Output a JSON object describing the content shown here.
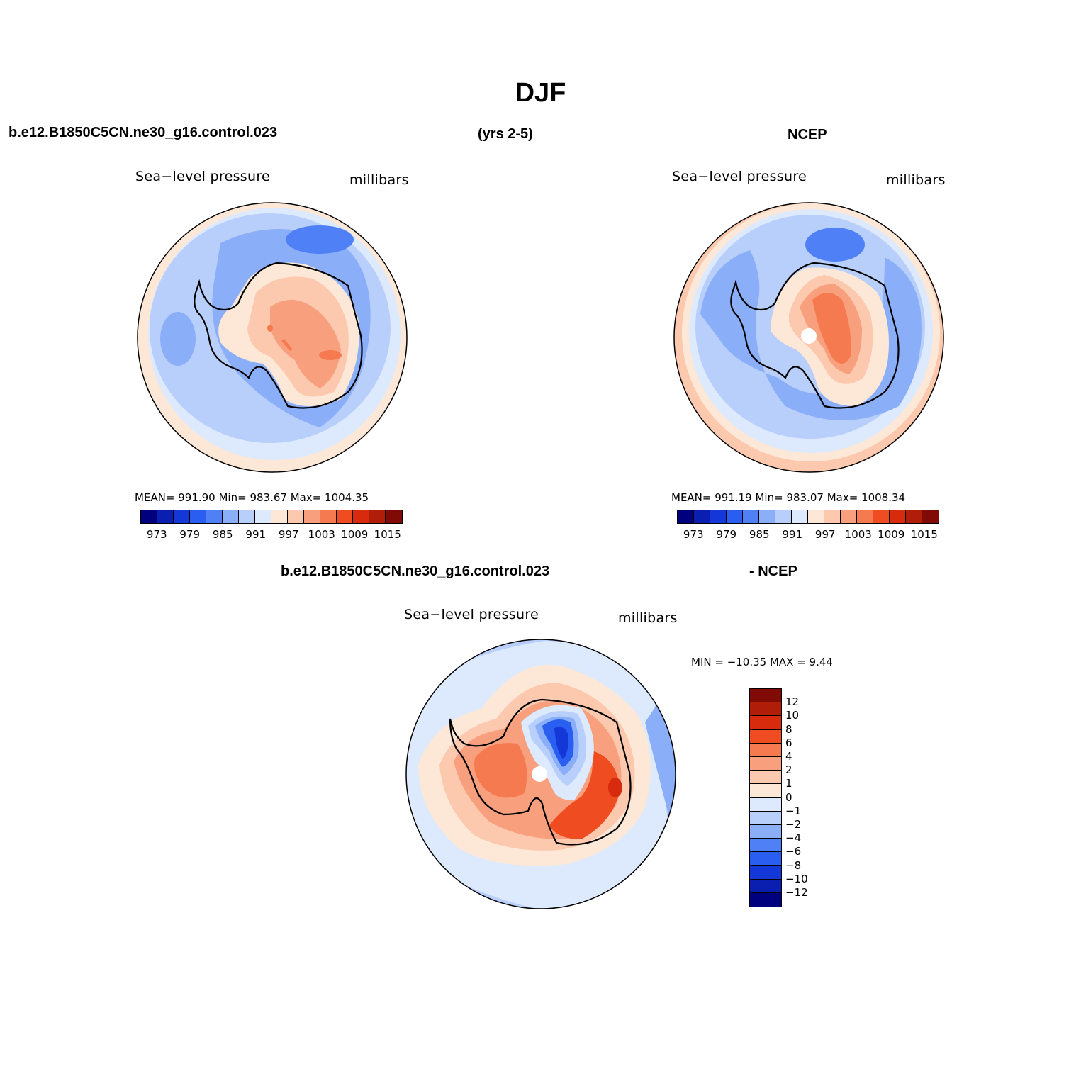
{
  "season_title": "DJF",
  "header": {
    "case_name": "b.e12.B1850C5CN.ne30_g16.control.023",
    "years": "(yrs 2-5)",
    "obs_name": "NCEP"
  },
  "panels": {
    "model": {
      "variable": "Sea−level pressure",
      "units": "millibars",
      "stats": "MEAN=  991.90   Min=  983.67   Max=  1004.35"
    },
    "obs": {
      "variable": "Sea−level pressure",
      "units": "millibars",
      "stats": "MEAN=  991.19   Min=  983.07   Max=  1008.34"
    },
    "diff": {
      "case_label": "b.e12.B1850C5CN.ne30_g16.control.023",
      "obs_label": "- NCEP",
      "variable": "Sea−level pressure",
      "units": "millibars",
      "stats": "MIN  =  −10.35  MAX  =     9.44"
    }
  },
  "colorbar_horizontal": {
    "labels": [
      "973",
      "979",
      "985",
      "991",
      "997",
      "1003",
      "1009",
      "1015"
    ],
    "colors": [
      "#00007f",
      "#0a1fb0",
      "#1438d8",
      "#2a5ef0",
      "#4f80f5",
      "#8aaff8",
      "#b9cffb",
      "#dde9fc",
      "#fde8d8",
      "#fcc8ae",
      "#f8a07d",
      "#f57a4f",
      "#ef4c22",
      "#d82a0c",
      "#b01d08",
      "#7f0a06"
    ]
  },
  "colorbar_vertical": {
    "labels": [
      "12",
      "10",
      "8",
      "6",
      "4",
      "2",
      "1",
      "0",
      "−1",
      "−2",
      "−4",
      "−6",
      "−8",
      "−10",
      "−12"
    ],
    "colors": [
      "#7f0a06",
      "#b01d08",
      "#d82a0c",
      "#ef4c22",
      "#f57a4f",
      "#f8a07d",
      "#fcc8ae",
      "#fde8d8",
      "#dde9fc",
      "#b9cffb",
      "#8aaff8",
      "#4f80f5",
      "#2a5ef0",
      "#1438d8",
      "#0a1fb0",
      "#00007f"
    ]
  }
}
